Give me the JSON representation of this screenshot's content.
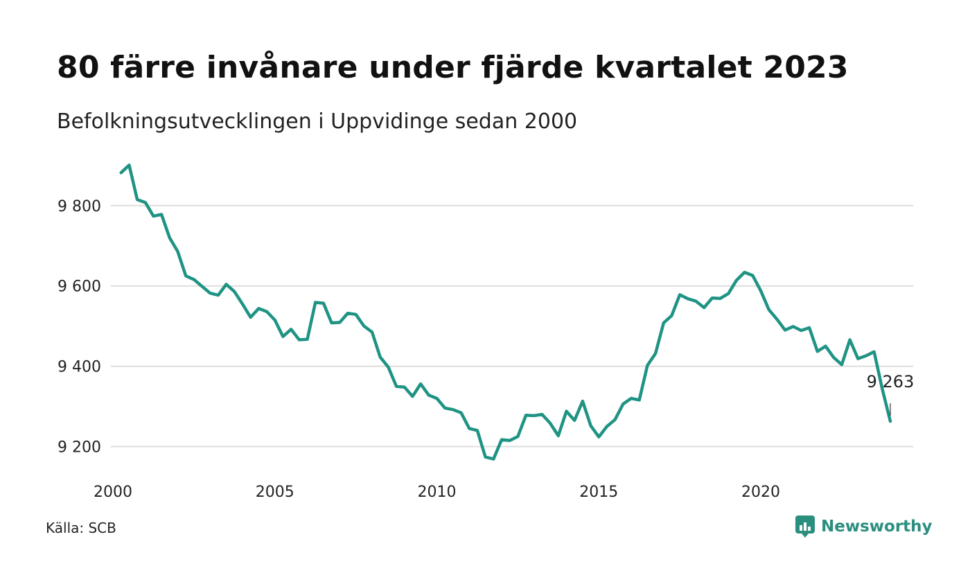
{
  "header": {
    "title": "80 färre invånare under fjärde kvartalet 2023",
    "subtitle": "Befolkningsutvecklingen i Uppvidinge sedan 2000"
  },
  "footer": {
    "source": "Källa: SCB",
    "brand": "Newsworthy"
  },
  "colors": {
    "line": "#1f9384",
    "grid": "#dddddd",
    "brand": "#2a8f7f"
  },
  "chart_data": {
    "type": "line",
    "title": "80 färre invånare under fjärde kvartalet 2023",
    "subtitle": "Befolkningsutvecklingen i Uppvidinge sedan 2000",
    "xlabel": "",
    "ylabel": "",
    "xlim": [
      2000,
      2024
    ],
    "ylim": [
      9150,
      9920
    ],
    "grid": true,
    "x_ticks": [
      2000,
      2005,
      2010,
      2015,
      2020
    ],
    "x_tick_labels": [
      "2000",
      "2005",
      "2010",
      "2015",
      "2020"
    ],
    "y_ticks": [
      9200,
      9400,
      9600,
      9800
    ],
    "y_tick_labels": [
      "9 200",
      "9 400",
      "9 600",
      "9 800"
    ],
    "end_label": "9 263",
    "series": [
      {
        "name": "",
        "x": [
          2000.25,
          2000.5,
          2000.75,
          2001.0,
          2001.25,
          2001.5,
          2001.75,
          2002.0,
          2002.25,
          2002.5,
          2002.75,
          2003.0,
          2003.25,
          2003.5,
          2003.75,
          2004.0,
          2004.25,
          2004.5,
          2004.75,
          2005.0,
          2005.25,
          2005.5,
          2005.75,
          2006.0,
          2006.25,
          2006.5,
          2006.75,
          2007.0,
          2007.25,
          2007.5,
          2007.75,
          2008.0,
          2008.25,
          2008.5,
          2008.75,
          2009.0,
          2009.25,
          2009.5,
          2009.75,
          2010.0,
          2010.25,
          2010.5,
          2010.75,
          2011.0,
          2011.25,
          2011.5,
          2011.75,
          2012.0,
          2012.25,
          2012.5,
          2012.75,
          2013.0,
          2013.25,
          2013.5,
          2013.75,
          2014.0,
          2014.25,
          2014.5,
          2014.75,
          2015.0,
          2015.25,
          2015.5,
          2015.75,
          2016.0,
          2016.25,
          2016.5,
          2016.75,
          2017.0,
          2017.25,
          2017.5,
          2017.75,
          2018.0,
          2018.25,
          2018.5,
          2018.75,
          2019.0,
          2019.25,
          2019.5,
          2019.75,
          2020.0,
          2020.25,
          2020.5,
          2020.75,
          2021.0,
          2021.25,
          2021.5,
          2021.75,
          2022.0,
          2022.25,
          2022.5,
          2022.75,
          2023.0,
          2023.25,
          2023.5,
          2023.75,
          2024.0
        ],
        "values": [
          9882,
          9901,
          9815,
          9808,
          9774,
          9778,
          9720,
          9686,
          9625,
          9616,
          9599,
          9582,
          9577,
          9604,
          9586,
          9555,
          9522,
          9544,
          9536,
          9515,
          9474,
          9492,
          9466,
          9467,
          9559,
          9557,
          9508,
          9509,
          9532,
          9529,
          9500,
          9485,
          9423,
          9398,
          9350,
          9348,
          9325,
          9356,
          9328,
          9320,
          9296,
          9292,
          9284,
          9245,
          9240,
          9174,
          9169,
          9217,
          9215,
          9225,
          9278,
          9277,
          9280,
          9258,
          9227,
          9288,
          9265,
          9313,
          9252,
          9224,
          9250,
          9267,
          9306,
          9320,
          9316,
          9402,
          9432,
          9508,
          9526,
          9578,
          9568,
          9562,
          9546,
          9570,
          9569,
          9581,
          9614,
          9634,
          9626,
          9588,
          9541,
          9517,
          9490,
          9499,
          9489,
          9496,
          9437,
          9450,
          9422,
          9404,
          9466,
          9419,
          9426,
          9436,
          9344,
          9263
        ]
      }
    ]
  }
}
